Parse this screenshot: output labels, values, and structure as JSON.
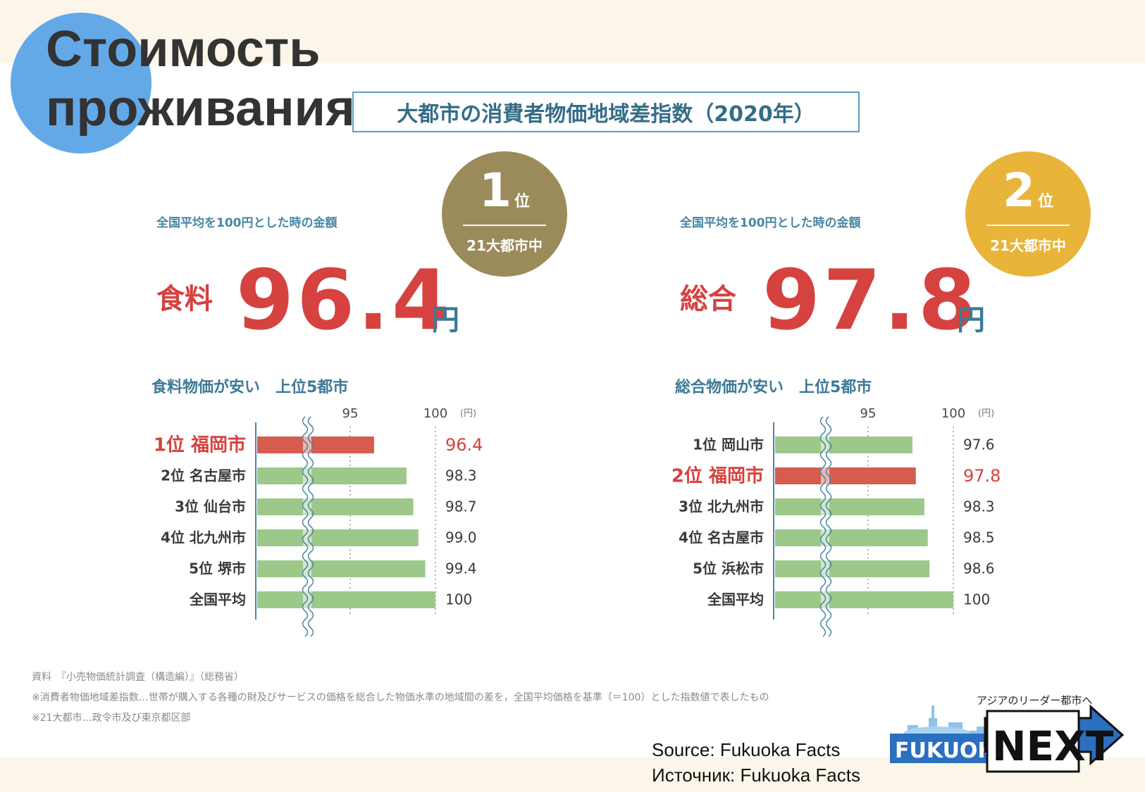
{
  "slide": {
    "title_line1": "Стоимость",
    "title_line2": "проживания",
    "chart_title": "大都市の消費者物価地域差指数（2020年）"
  },
  "left": {
    "subheading": "全国平均を100円とした時の金額",
    "label": "食料",
    "value": "96.4",
    "unit": "円",
    "medal_rank": "1",
    "medal_suffix": "位",
    "medal_sub": "21大都市中",
    "medal_color": "#9b8a5a",
    "list_heading": "食料物価が安い　上位5都市"
  },
  "right": {
    "subheading": "全国平均を100円とした時の金額",
    "label": "総合",
    "value": "97.8",
    "unit": "円",
    "medal_rank": "2",
    "medal_suffix": "位",
    "medal_sub": "21大都市中",
    "medal_color": "#e8b43a",
    "list_heading": "総合物価が安い　上位5都市"
  },
  "colors": {
    "highlight": "#d5423f",
    "bar_green": "#9cc98a",
    "bar_red": "#d65c4f",
    "accent_blue": "#3d7a96"
  },
  "chart_data": [
    {
      "type": "bar",
      "orientation": "horizontal",
      "categories": [
        "1位 福岡市",
        "2位 名古屋市",
        "3位 仙台市",
        "4位 北九州市",
        "5位 堺市",
        "全国平均"
      ],
      "values": [
        96.4,
        98.3,
        98.7,
        99.0,
        99.4,
        100
      ],
      "value_labels": [
        "96.4",
        "98.3",
        "98.7",
        "99.0",
        "99.4",
        "100"
      ],
      "highlight_index": 0,
      "x_ticks": [
        "95",
        "100"
      ],
      "x_tick_values": [
        95,
        100
      ],
      "unit_label": "(円)",
      "axis_break": true
    },
    {
      "type": "bar",
      "orientation": "horizontal",
      "categories": [
        "1位 岡山市",
        "2位 福岡市",
        "3位 北九州市",
        "4位 名古屋市",
        "5位 浜松市",
        "全国平均"
      ],
      "values": [
        97.6,
        97.8,
        98.3,
        98.5,
        98.6,
        100
      ],
      "value_labels": [
        "97.6",
        "97.8",
        "98.3",
        "98.5",
        "98.6",
        "100"
      ],
      "highlight_index": 1,
      "x_ticks": [
        "95",
        "100"
      ],
      "x_tick_values": [
        95,
        100
      ],
      "unit_label": "(円)",
      "axis_break": true
    }
  ],
  "footnotes": [
    "資料　『小売物価統計調査（構造編）』（総務省）",
    "※消費者物価地域差指数…世帯が購入する各種の財及びサービスの価格を総合した物価水準の地域間の差を，全国平均価格を基準（＝100）とした指数値で表したもの",
    "※21大都市…政令市及び東京都区部"
  ],
  "source": {
    "line1": "Source: Fukuoka Facts",
    "line2": "Источник: Fukuoka Facts"
  },
  "logo": {
    "tagline": "アジアのリーダー都市へ",
    "word1": "FUKUOKA",
    "word2": "NEXT"
  }
}
